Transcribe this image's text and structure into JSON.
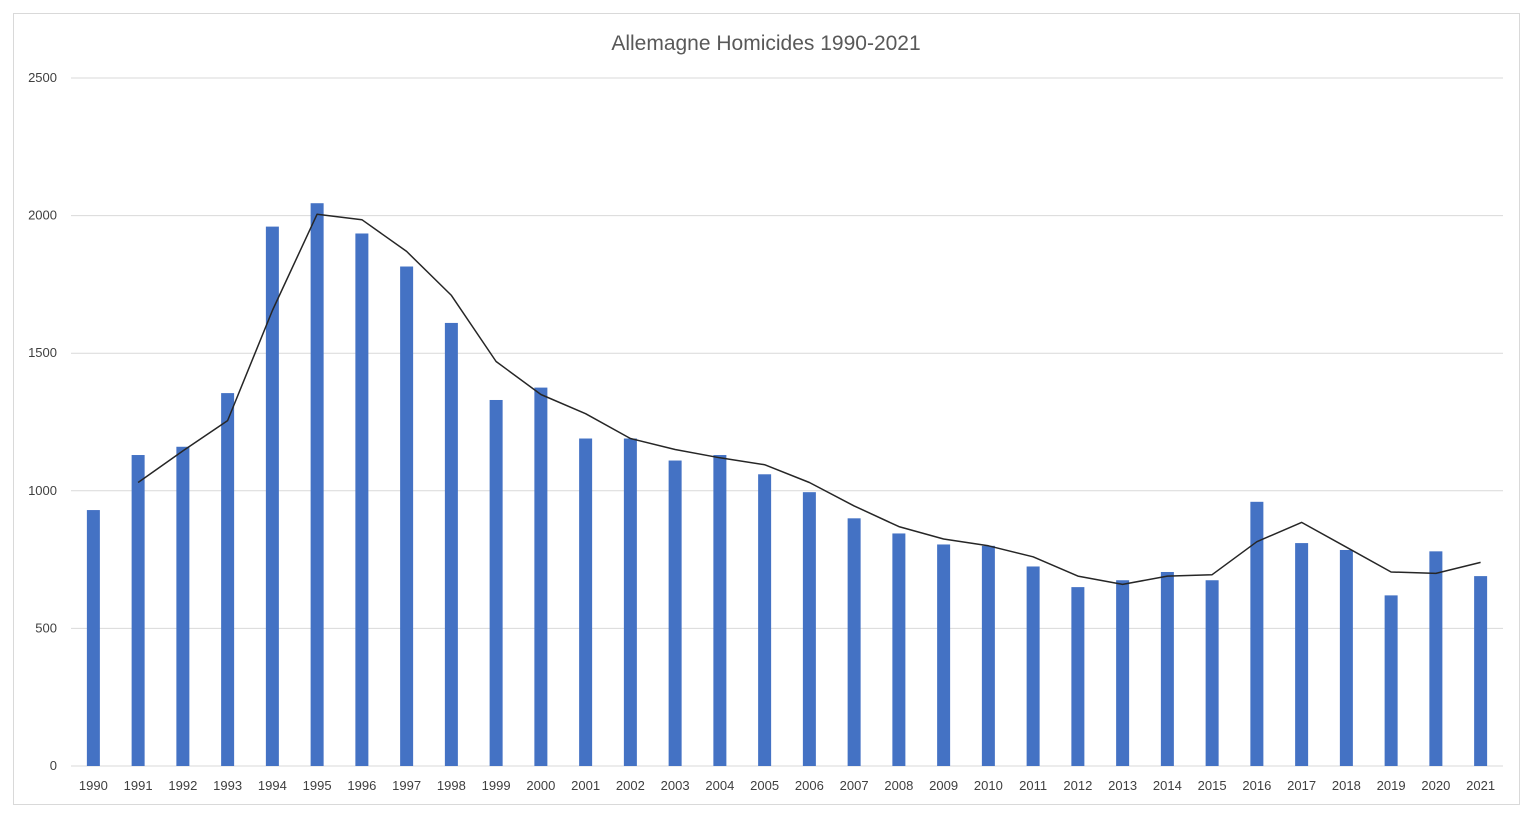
{
  "chart_data": {
    "type": "bar",
    "title": "Allemagne Homicides 1990-2021",
    "xlabel": "",
    "ylabel": "",
    "ylim": [
      0,
      2500
    ],
    "y_ticks": [
      "0",
      "500",
      "1000",
      "1500",
      "2000",
      "2500"
    ],
    "grid": true,
    "legend": "none",
    "categories": [
      "1990",
      "1991",
      "1992",
      "1993",
      "1994",
      "1995",
      "1996",
      "1997",
      "1998",
      "1999",
      "2000",
      "2001",
      "2002",
      "2003",
      "2004",
      "2005",
      "2006",
      "2007",
      "2008",
      "2009",
      "2010",
      "2011",
      "2012",
      "2013",
      "2014",
      "2015",
      "2016",
      "2017",
      "2018",
      "2019",
      "2020",
      "2021"
    ],
    "series": [
      {
        "type": "bar",
        "color": "#4472c4",
        "values": [
          930,
          1130,
          1160,
          1355,
          1960,
          2045,
          1935,
          1815,
          1610,
          1330,
          1375,
          1190,
          1190,
          1110,
          1130,
          1060,
          995,
          900,
          845,
          805,
          800,
          725,
          650,
          675,
          705,
          675,
          960,
          810,
          785,
          620,
          780,
          690
        ]
      },
      {
        "type": "line",
        "color": "#262626",
        "values": [
          null,
          1030,
          1145,
          1255,
          1655,
          2005,
          1985,
          1870,
          1710,
          1470,
          1350,
          1280,
          1190,
          1150,
          1120,
          1095,
          1030,
          945,
          870,
          825,
          800,
          760,
          690,
          660,
          690,
          695,
          815,
          885,
          795,
          705,
          700,
          740
        ]
      }
    ]
  }
}
